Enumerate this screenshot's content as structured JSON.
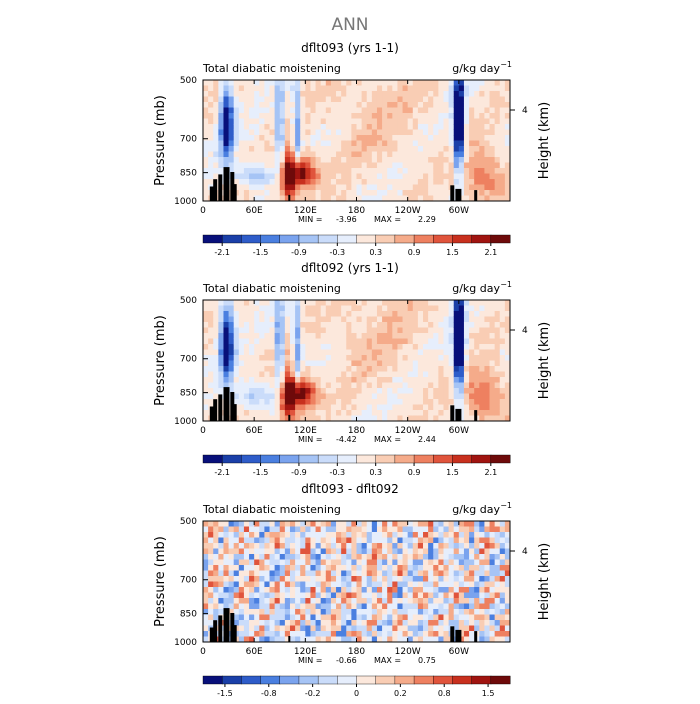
{
  "page_title": "ANN",
  "colors": {
    "scale_a": [
      "#08107a",
      "#1a3fa8",
      "#2e5cc9",
      "#4a7fe0",
      "#7aa3ee",
      "#a6c4f5",
      "#cadcfa",
      "#e6eefc",
      "#fce8dc",
      "#f9cdb4",
      "#f5ab8a",
      "#ee8060",
      "#e0543c",
      "#c8301e",
      "#a01410",
      "#6e0a0a"
    ],
    "land": "#000000"
  },
  "chart_data": [
    {
      "type": "heatmap",
      "title": "dflt093 (yrs 1-1)",
      "subtitle_left": "Total diabatic moistening",
      "units": "g/kg day",
      "units_exp": "−1",
      "ylabel": "Pressure (mb)",
      "ylabel_right": "Height (km)",
      "y_ticks": [
        "500",
        "700",
        "850",
        "1000"
      ],
      "y_ticks_right": [
        "4"
      ],
      "x_ticks": [
        "0",
        "60E",
        "120E",
        "180",
        "120W",
        "60W"
      ],
      "min_label": "MIN =",
      "min_value": "-3.96",
      "max_label": "MAX =",
      "max_value": "2.29",
      "colorbar_labels": [
        "-2.1",
        "-1.5",
        "-0.9",
        "-0.3",
        "0.3",
        "0.9",
        "1.5",
        "2.1"
      ],
      "fields": [
        {
          "lon": 100,
          "w": 12,
          "p": 880,
          "ph": 140,
          "v": 1.9
        },
        {
          "lon": 115,
          "w": 18,
          "p": 850,
          "ph": 70,
          "v": 2.2
        },
        {
          "lon": 28,
          "w": 8,
          "p": 650,
          "ph": 140,
          "v": -2.6
        },
        {
          "lon": 300,
          "w": 6,
          "p": 640,
          "ph": 200,
          "v": -3.5
        },
        {
          "lon": 90,
          "w": 5,
          "p": 680,
          "ph": 200,
          "v": -1.6
        },
        {
          "lon": 110,
          "w": 5,
          "p": 680,
          "ph": 220,
          "v": -1.4
        },
        {
          "lon": 330,
          "w": 25,
          "p": 870,
          "ph": 120,
          "v": 1.1
        },
        {
          "lon": 60,
          "w": 30,
          "p": 860,
          "ph": 60,
          "v": -0.9
        },
        {
          "lon": 200,
          "w": 60,
          "p": 600,
          "ph": 200,
          "v": 0.3
        }
      ]
    },
    {
      "type": "heatmap",
      "title": "dflt092 (yrs 1-1)",
      "subtitle_left": "Total diabatic moistening",
      "units": "g/kg day",
      "units_exp": "−1",
      "ylabel": "Pressure (mb)",
      "ylabel_right": "Height (km)",
      "y_ticks": [
        "500",
        "700",
        "850",
        "1000"
      ],
      "y_ticks_right": [
        "4"
      ],
      "x_ticks": [
        "0",
        "60E",
        "120E",
        "180",
        "120W",
        "60W"
      ],
      "min_label": "MIN =",
      "min_value": "-4.42",
      "max_label": "MAX =",
      "max_value": "2.44",
      "colorbar_labels": [
        "-2.1",
        "-1.5",
        "-0.9",
        "-0.3",
        "0.3",
        "0.9",
        "1.5",
        "2.1"
      ],
      "fields": [
        {
          "lon": 100,
          "w": 12,
          "p": 880,
          "ph": 140,
          "v": 2.0
        },
        {
          "lon": 115,
          "w": 18,
          "p": 850,
          "ph": 70,
          "v": 2.3
        },
        {
          "lon": 28,
          "w": 8,
          "p": 650,
          "ph": 140,
          "v": -2.8
        },
        {
          "lon": 300,
          "w": 6,
          "p": 640,
          "ph": 200,
          "v": -3.8
        },
        {
          "lon": 90,
          "w": 5,
          "p": 680,
          "ph": 200,
          "v": -1.7
        },
        {
          "lon": 110,
          "w": 5,
          "p": 680,
          "ph": 220,
          "v": -1.5
        },
        {
          "lon": 330,
          "w": 25,
          "p": 870,
          "ph": 120,
          "v": 1.2
        },
        {
          "lon": 60,
          "w": 30,
          "p": 860,
          "ph": 60,
          "v": -0.9
        },
        {
          "lon": 200,
          "w": 60,
          "p": 600,
          "ph": 200,
          "v": 0.3
        }
      ]
    },
    {
      "type": "heatmap",
      "title": "dflt093 - dflt092",
      "subtitle_left": "Total diabatic moistening",
      "units": "g/kg day",
      "units_exp": "−1",
      "ylabel": "Pressure (mb)",
      "ylabel_right": "Height (km)",
      "y_ticks": [
        "500",
        "700",
        "850",
        "1000"
      ],
      "y_ticks_right": [
        "4"
      ],
      "x_ticks": [
        "0",
        "60E",
        "120E",
        "180",
        "120W",
        "60W"
      ],
      "min_label": "MIN =",
      "min_value": "-0.66",
      "max_label": "MAX =",
      "max_value": "0.75",
      "colorbar_labels": [
        "-1.5",
        "-0.8",
        "-0.2",
        "0",
        "0.2",
        "0.8",
        "1.5"
      ],
      "fields": []
    }
  ]
}
